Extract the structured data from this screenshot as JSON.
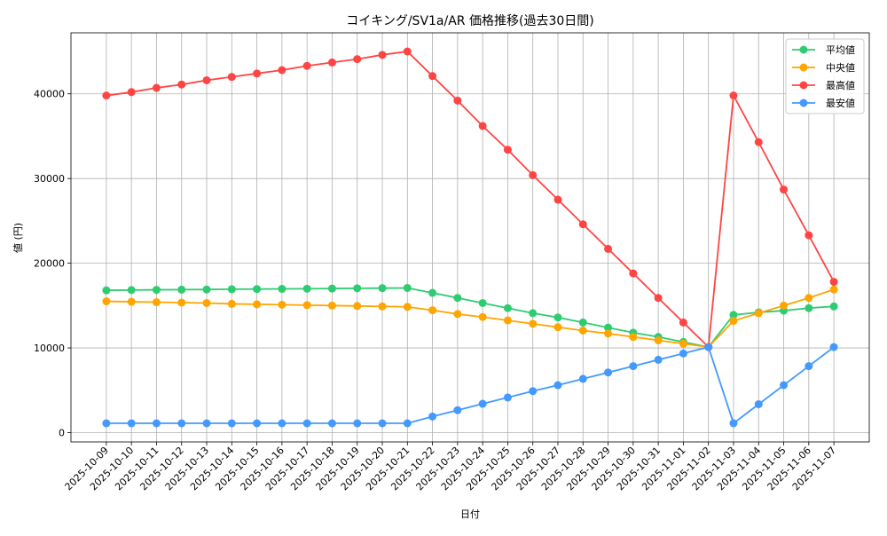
{
  "chart_data": {
    "type": "line",
    "title": "コイキング/SV1a/AR 価格推移(過去30日間)",
    "xlabel": "日付",
    "ylabel": "値 (円)",
    "ylim": [
      -1100,
      47200
    ],
    "yticks": [
      0,
      10000,
      20000,
      30000,
      40000
    ],
    "grid": true,
    "legend_placement": "top-right",
    "x": [
      "2025-10-09",
      "2025-10-10",
      "2025-10-11",
      "2025-10-12",
      "2025-10-13",
      "2025-10-14",
      "2025-10-15",
      "2025-10-16",
      "2025-10-17",
      "2025-10-18",
      "2025-10-19",
      "2025-10-20",
      "2025-10-21",
      "2025-10-22",
      "2025-10-23",
      "2025-10-24",
      "2025-10-25",
      "2025-10-26",
      "2025-10-27",
      "2025-10-28",
      "2025-10-29",
      "2025-10-30",
      "2025-10-31",
      "2025-11-01",
      "2025-11-02",
      "2025-11-03",
      "2025-11-04",
      "2025-11-05",
      "2025-11-06",
      "2025-11-07"
    ],
    "series": [
      {
        "name": "平均値",
        "color": "#2ecc71",
        "values": [
          16800,
          16830,
          16860,
          16880,
          16900,
          16930,
          16950,
          16970,
          16990,
          17010,
          17040,
          17060,
          17080,
          16500,
          15900,
          15300,
          14700,
          14100,
          13600,
          13000,
          12400,
          11800,
          11300,
          10700,
          10100,
          13900,
          14200,
          14400,
          14700,
          14900
        ]
      },
      {
        "name": "中央値",
        "color": "#ffa500",
        "values": [
          15500,
          15450,
          15400,
          15350,
          15300,
          15200,
          15150,
          15100,
          15050,
          15000,
          14950,
          14900,
          14850,
          14450,
          14000,
          13650,
          13250,
          12850,
          12450,
          12050,
          11700,
          11300,
          10900,
          10500,
          10100,
          13200,
          14100,
          15000,
          15900,
          16900
        ]
      },
      {
        "name": "最高値",
        "color": "#ff4444",
        "values": [
          39800,
          40200,
          40700,
          41100,
          41600,
          42000,
          42400,
          42800,
          43300,
          43700,
          44100,
          44600,
          45000,
          42100,
          39200,
          36200,
          33400,
          30400,
          27500,
          24600,
          21700,
          18800,
          15900,
          13000,
          10100,
          39800,
          34300,
          28700,
          23300,
          17800
        ]
      },
      {
        "name": "最安値",
        "color": "#4499ff",
        "values": [
          1100,
          1100,
          1100,
          1100,
          1100,
          1100,
          1100,
          1100,
          1100,
          1100,
          1100,
          1100,
          1100,
          1900,
          2650,
          3400,
          4150,
          4900,
          5600,
          6350,
          7100,
          7850,
          8600,
          9350,
          10100,
          1100,
          3350,
          5600,
          7850,
          10100
        ]
      }
    ]
  }
}
